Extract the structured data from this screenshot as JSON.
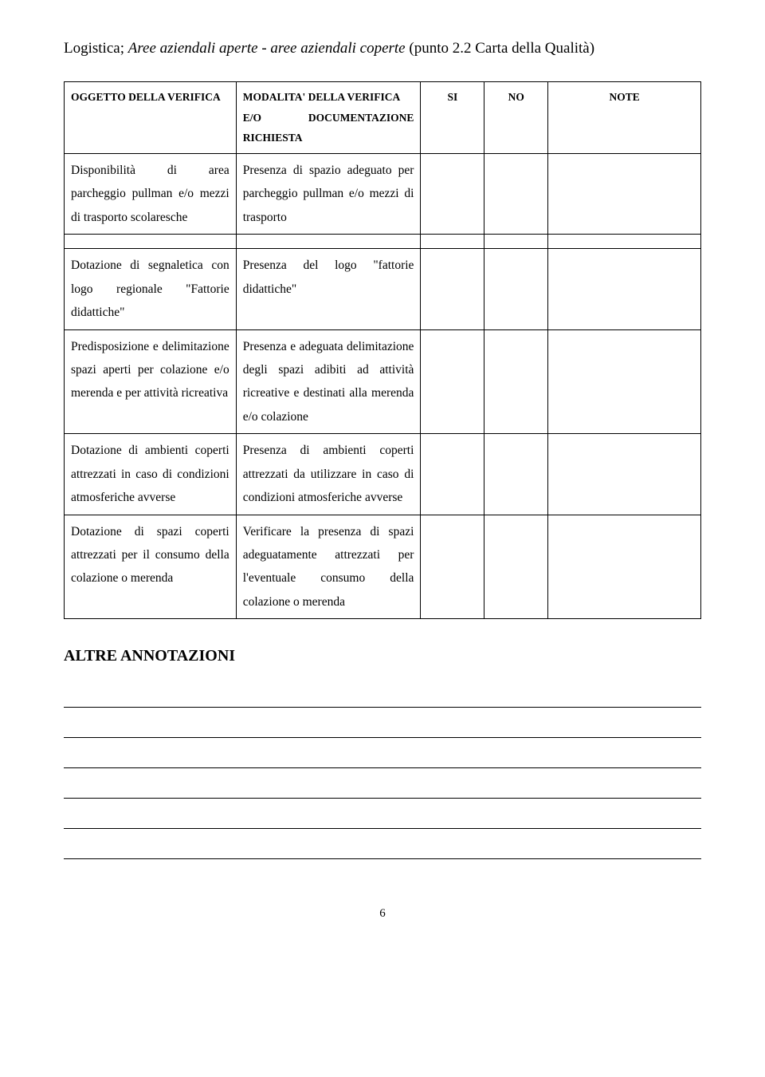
{
  "title": {
    "prefix": "Logistica; ",
    "italic": "Aree aziendali aperte - aree aziendali coperte",
    "suffix": " (punto 2.2 Carta della Qualità)"
  },
  "table": {
    "headers": {
      "col1": "OGGETTO DELLA VERIFICA",
      "col2_line1": "MODALITA' DELLA VERIFICA",
      "col2_line2_a": "E/O",
      "col2_line2_b": "DOCUMENTAZIONE",
      "col2_line3": "RICHIESTA",
      "col3": "SI",
      "col4": "NO",
      "col5": "NOTE"
    },
    "rows": [
      {
        "col1": "Disponibilità di area parcheggio pullman e/o mezzi di trasporto scolaresche",
        "col2": "Presenza di spazio adeguato per parcheggio pullman e/o mezzi di trasporto"
      },
      {
        "col1": "Dotazione di segnaletica con logo regionale \"Fattorie didattiche\"",
        "col2": "Presenza del logo \"fattorie didattiche\""
      },
      {
        "col1": "Predisposizione e delimitazione spazi aperti per colazione e/o merenda e per attività ricreativa",
        "col2": "Presenza e adeguata delimitazione degli spazi adibiti ad attività ricreative e destinati alla merenda e/o colazione"
      },
      {
        "col1": "Dotazione di ambienti coperti attrezzati in caso di condizioni atmosferiche avverse",
        "col2": "Presenza di ambienti coperti attrezzati da utilizzare in caso di condizioni atmosferiche avverse"
      },
      {
        "col1": "Dotazione di spazi coperti attrezzati per il consumo della colazione o merenda",
        "col2": "Verificare la presenza di spazi adeguatamente attrezzati per l'eventuale consumo della colazione o merenda"
      }
    ]
  },
  "section_heading": "ALTRE ANNOTAZIONI",
  "page_number": "6"
}
